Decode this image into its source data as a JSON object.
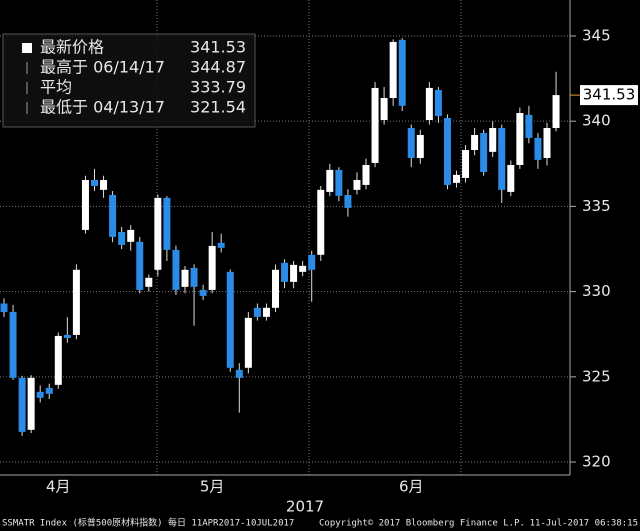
{
  "chart_data": {
    "type": "candlestick",
    "categories": [
      null,
      null,
      null,
      null,
      null,
      null,
      "4月",
      null,
      null,
      null,
      null,
      null,
      null,
      null,
      null,
      null,
      null,
      null,
      null,
      null,
      null,
      null,
      null,
      "5月",
      null,
      null,
      null,
      null,
      null,
      null,
      null,
      null,
      null,
      null,
      null,
      null,
      null,
      null,
      null,
      null,
      null,
      null,
      null,
      null,
      null,
      "6月",
      null,
      null,
      null,
      null,
      null,
      null,
      null,
      null,
      null,
      null,
      null,
      null,
      null,
      null,
      null,
      null
    ],
    "x_label": "2017",
    "open": [
      329.3,
      328.81,
      324.94,
      321.89,
      324.12,
      324.35,
      324.53,
      327.46,
      327.46,
      333.62,
      336.55,
      335.97,
      335.67,
      333.5,
      332.92,
      332.92,
      330.28,
      331.28,
      335.5,
      332.45,
      330.28,
      331.39,
      330.1,
      330.1,
      332.86,
      331.16,
      325.41,
      325.53,
      329.05,
      328.52,
      329.05,
      331.69,
      330.57,
      331.16,
      332.16,
      332.16,
      335.85,
      337.14,
      335.67,
      335.97,
      336.26,
      337.55,
      340.07,
      341.36,
      344.77,
      339.6,
      337.84,
      340.07,
      341.83,
      340.19,
      336.38,
      336.67,
      338.31,
      339.31,
      338.2,
      339.6,
      335.85,
      337.43,
      340.37,
      339.02,
      337.84,
      339.6
    ],
    "high": [
      329.6,
      329.22,
      325.06,
      325.1,
      324.5,
      324.6,
      327.6,
      328.5,
      331.6,
      336.8,
      337.2,
      336.8,
      335.9,
      333.8,
      333.9,
      333.2,
      331.0,
      335.7,
      335.6,
      332.7,
      331.5,
      331.6,
      330.4,
      333.5,
      333.4,
      331.3,
      325.8,
      328.8,
      329.3,
      329.3,
      331.6,
      331.9,
      331.8,
      331.8,
      332.4,
      336.2,
      337.5,
      337.3,
      336.0,
      337.0,
      337.8,
      342.3,
      342.0,
      344.8,
      344.87,
      339.8,
      339.5,
      342.3,
      342.0,
      340.4,
      337.1,
      338.6,
      339.6,
      339.5,
      340.0,
      339.8,
      337.7,
      340.8,
      340.9,
      339.3,
      339.9,
      342.9
    ],
    "low": [
      328.5,
      324.82,
      321.54,
      321.7,
      323.5,
      323.7,
      324.3,
      327.0,
      327.2,
      333.4,
      335.9,
      335.5,
      332.9,
      332.5,
      332.4,
      329.9,
      330.0,
      330.9,
      331.8,
      329.8,
      329.9,
      328.0,
      329.5,
      329.9,
      332.3,
      325.3,
      322.9,
      325.2,
      328.3,
      328.3,
      328.8,
      330.2,
      330.2,
      330.9,
      329.4,
      331.8,
      335.6,
      335.3,
      334.4,
      335.7,
      336.0,
      337.3,
      339.8,
      340.9,
      340.6,
      337.3,
      337.5,
      339.8,
      339.9,
      336.0,
      336.1,
      336.4,
      338.0,
      336.8,
      337.9,
      335.2,
      335.6,
      337.2,
      338.7,
      337.2,
      337.4,
      339.4
    ],
    "close": [
      328.8,
      324.94,
      321.77,
      324.94,
      323.77,
      324.0,
      327.4,
      327.28,
      331.28,
      336.55,
      336.2,
      336.55,
      333.21,
      332.74,
      333.62,
      330.1,
      330.81,
      335.5,
      332.45,
      330.1,
      331.28,
      330.28,
      329.75,
      332.68,
      332.57,
      325.53,
      324.94,
      328.46,
      328.52,
      329.05,
      331.28,
      330.57,
      331.57,
      331.51,
      331.28,
      335.97,
      337.14,
      335.62,
      334.91,
      336.55,
      337.43,
      341.95,
      341.36,
      344.65,
      340.9,
      337.84,
      339.19,
      341.95,
      340.3,
      336.26,
      336.85,
      338.31,
      339.19,
      337.02,
      339.6,
      335.97,
      337.43,
      340.48,
      339.02,
      337.73,
      339.6,
      341.53
    ],
    "up_color": "#ffffff",
    "down_color": "#2a8ce6",
    "ylim": [
      319.24,
      347.11
    ],
    "yticks": [
      320,
      325,
      330,
      335,
      340,
      345
    ],
    "grid": true,
    "legend": [
      {
        "label": "最新价格",
        "value": 341.53
      },
      {
        "label": "最高于 06/14/17",
        "value": 344.87
      },
      {
        "label": "平均",
        "value": 333.79
      },
      {
        "label": "最低于 04/13/17",
        "value": 321.54
      }
    ]
  },
  "footer": {
    "left": "SSMATR Index (标普500原材料指数) 每日 11APR2017-10JUL2017",
    "center": "Copyright© 2017 Bloomberg Finance L.P.",
    "right": "11-Jul-2017 06:38:15"
  }
}
